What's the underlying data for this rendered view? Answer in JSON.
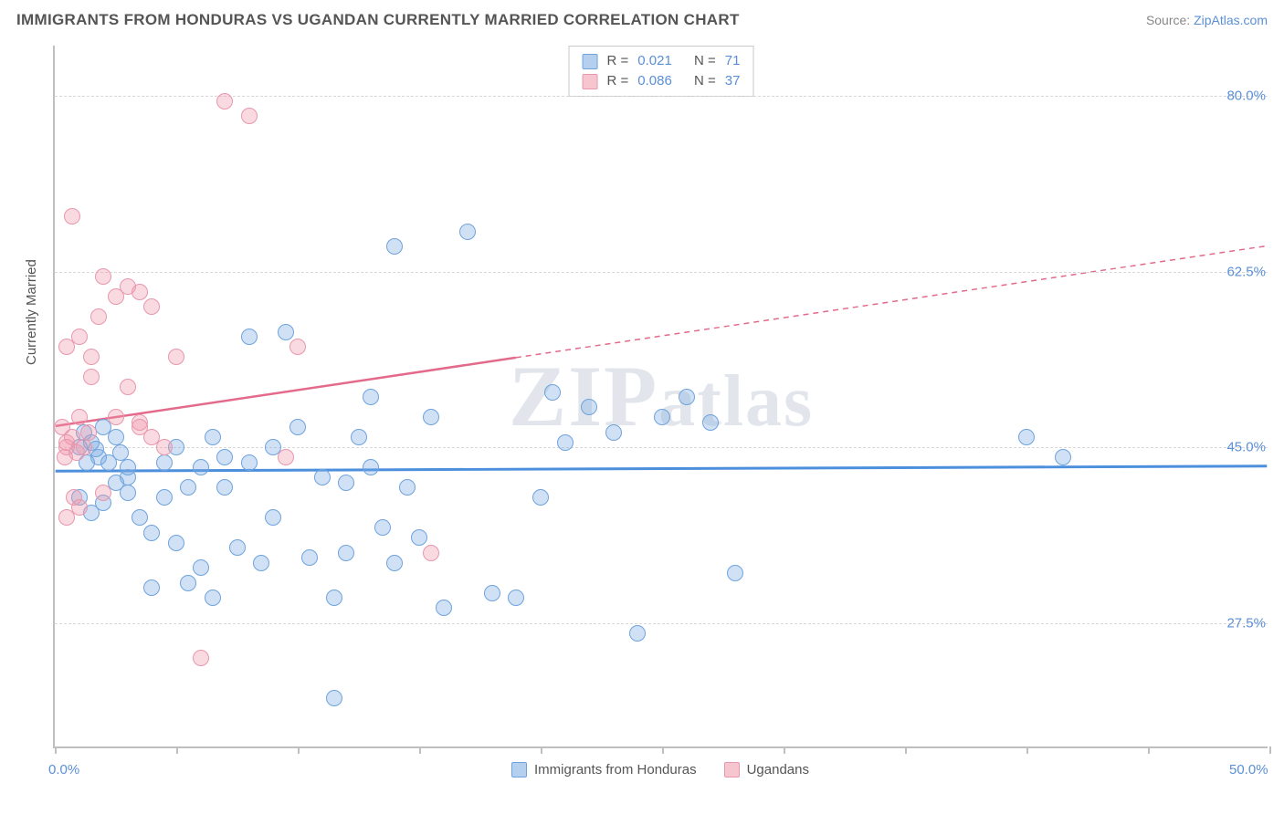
{
  "header": {
    "title": "IMMIGRANTS FROM HONDURAS VS UGANDAN CURRENTLY MARRIED CORRELATION CHART",
    "source_prefix": "Source: ",
    "source_link": "ZipAtlas.com"
  },
  "watermark": "ZIPatlas",
  "chart": {
    "type": "scatter",
    "background_color": "#ffffff",
    "grid_color": "#d8d8d8",
    "axis_color": "#bfbfbf",
    "ylabel": "Currently Married",
    "ylabel_color": "#555555",
    "ylabel_fontsize": 15,
    "xlim": [
      0,
      50
    ],
    "ylim": [
      15,
      85
    ],
    "yticks": [
      27.5,
      45.0,
      62.5,
      80.0
    ],
    "ytick_labels": [
      "27.5%",
      "45.0%",
      "62.5%",
      "80.0%"
    ],
    "ytick_color": "#5b8fd6",
    "xtick_positions": [
      0,
      5,
      10,
      15,
      20,
      25,
      30,
      35,
      40,
      45,
      50
    ],
    "xaxis_min_label": "0.0%",
    "xaxis_max_label": "50.0%",
    "series": [
      {
        "name": "Immigrants from Honduras",
        "color_fill": "rgba(120,170,225,0.35)",
        "color_stroke": "#6fa3dd",
        "marker_size": 18,
        "r": "0.021",
        "n": "71",
        "trend": {
          "y_at_xmin": 42.5,
          "y_at_xmax": 43.0,
          "stroke": "#4b8fdd",
          "width": 3,
          "dash_after_x": null
        },
        "points": [
          [
            1.0,
            45.0
          ],
          [
            1.2,
            46.5
          ],
          [
            1.5,
            45.5
          ],
          [
            1.8,
            44.0
          ],
          [
            2.0,
            47.0
          ],
          [
            2.2,
            43.5
          ],
          [
            2.5,
            46.0
          ],
          [
            2.7,
            44.5
          ],
          [
            3.0,
            42.0
          ],
          [
            1.0,
            40.0
          ],
          [
            1.5,
            38.5
          ],
          [
            2.0,
            39.5
          ],
          [
            3.0,
            40.5
          ],
          [
            3.5,
            38.0
          ],
          [
            4.0,
            36.5
          ],
          [
            4.5,
            40.0
          ],
          [
            5.0,
            35.5
          ],
          [
            5.5,
            41.0
          ],
          [
            6.0,
            33.0
          ],
          [
            6.5,
            46.0
          ],
          [
            7.0,
            44.0
          ],
          [
            7.5,
            35.0
          ],
          [
            8.0,
            56.0
          ],
          [
            8.5,
            33.5
          ],
          [
            9.0,
            38.0
          ],
          [
            9.5,
            56.5
          ],
          [
            10.0,
            47.0
          ],
          [
            10.5,
            34.0
          ],
          [
            11.0,
            42.0
          ],
          [
            11.5,
            30.0
          ],
          [
            12.0,
            34.5
          ],
          [
            12.5,
            46.0
          ],
          [
            13.0,
            50.0
          ],
          [
            13.5,
            37.0
          ],
          [
            14.0,
            65.0
          ],
          [
            14.5,
            41.0
          ],
          [
            15.0,
            36.0
          ],
          [
            15.5,
            48.0
          ],
          [
            16.0,
            29.0
          ],
          [
            17.0,
            66.5
          ],
          [
            11.5,
            20.0
          ],
          [
            4.0,
            31.0
          ],
          [
            5.5,
            31.5
          ],
          [
            6.5,
            30.0
          ],
          [
            18.0,
            30.5
          ],
          [
            19.0,
            30.0
          ],
          [
            20.0,
            40.0
          ],
          [
            20.5,
            50.5
          ],
          [
            21.0,
            45.5
          ],
          [
            22.0,
            49.0
          ],
          [
            23.0,
            46.5
          ],
          [
            24.0,
            26.5
          ],
          [
            25.0,
            48.0
          ],
          [
            26.0,
            50.0
          ],
          [
            27.0,
            47.5
          ],
          [
            28.0,
            32.5
          ],
          [
            40.0,
            46.0
          ],
          [
            41.5,
            44.0
          ],
          [
            3.0,
            43.0
          ],
          [
            4.5,
            43.5
          ],
          [
            5.0,
            45.0
          ],
          [
            6.0,
            43.0
          ],
          [
            7.0,
            41.0
          ],
          [
            8.0,
            43.5
          ],
          [
            9.0,
            45.0
          ],
          [
            12.0,
            41.5
          ],
          [
            13.0,
            43.0
          ],
          [
            14.0,
            33.5
          ],
          [
            2.5,
            41.5
          ],
          [
            1.3,
            43.5
          ],
          [
            1.7,
            44.8
          ]
        ]
      },
      {
        "name": "Ugandans",
        "color_fill": "rgba(240,150,170,0.35)",
        "color_stroke": "#e797ae",
        "marker_size": 18,
        "r": "0.086",
        "n": "37",
        "trend": {
          "y_at_xmin": 47.0,
          "y_at_xmax": 65.0,
          "stroke": "#e36a8a",
          "width": 2.5,
          "dash_after_x": 19
        },
        "points": [
          [
            0.3,
            47.0
          ],
          [
            0.5,
            45.5
          ],
          [
            0.7,
            46.0
          ],
          [
            0.9,
            44.5
          ],
          [
            1.0,
            48.0
          ],
          [
            1.2,
            45.0
          ],
          [
            1.4,
            46.5
          ],
          [
            0.5,
            38.0
          ],
          [
            0.8,
            40.0
          ],
          [
            0.5,
            55.0
          ],
          [
            1.0,
            56.0
          ],
          [
            1.5,
            54.0
          ],
          [
            0.7,
            68.0
          ],
          [
            1.5,
            52.0
          ],
          [
            2.0,
            62.0
          ],
          [
            2.5,
            60.0
          ],
          [
            3.0,
            61.0
          ],
          [
            3.5,
            60.5
          ],
          [
            3.0,
            51.0
          ],
          [
            3.5,
            47.0
          ],
          [
            4.0,
            59.0
          ],
          [
            4.5,
            45.0
          ],
          [
            5.0,
            54.0
          ],
          [
            6.0,
            24.0
          ],
          [
            7.0,
            79.5
          ],
          [
            8.0,
            78.0
          ],
          [
            9.5,
            44.0
          ],
          [
            10.0,
            55.0
          ],
          [
            2.0,
            40.5
          ],
          [
            1.0,
            39.0
          ],
          [
            15.5,
            34.5
          ],
          [
            3.5,
            47.5
          ],
          [
            4.0,
            46.0
          ],
          [
            2.5,
            48.0
          ],
          [
            1.8,
            58.0
          ],
          [
            0.5,
            45.0
          ],
          [
            0.4,
            44.0
          ]
        ]
      }
    ]
  },
  "top_legend": {
    "rows": [
      {
        "swatch": "blue",
        "r_label": "R =",
        "r_val": "0.021",
        "n_label": "N =",
        "n_val": "71"
      },
      {
        "swatch": "pink",
        "r_label": "R =",
        "r_val": "0.086",
        "n_label": "N =",
        "n_val": "37"
      }
    ]
  },
  "bottom_legend": {
    "items": [
      {
        "swatch": "blue",
        "label": "Immigrants from Honduras"
      },
      {
        "swatch": "pink",
        "label": "Ugandans"
      }
    ]
  }
}
